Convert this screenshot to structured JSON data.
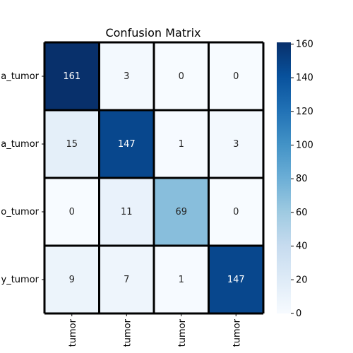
{
  "chart_data": {
    "type": "heatmap",
    "title": "Confusion Matrix",
    "row_labels": [
      "a_tumor",
      "a_tumor",
      "o_tumor",
      "y_tumor"
    ],
    "col_labels": [
      "tumor",
      "tumor",
      "tumor",
      "tumor"
    ],
    "values": [
      [
        161,
        3,
        0,
        0
      ],
      [
        15,
        147,
        1,
        3
      ],
      [
        0,
        11,
        69,
        0
      ],
      [
        9,
        7,
        1,
        147
      ]
    ],
    "colormap": "Blues",
    "vmin": 0,
    "vmax": 161,
    "colorbar_ticks": [
      0,
      20,
      40,
      60,
      80,
      100,
      120,
      140,
      160
    ],
    "colorbar_tick_labels": [
      "0",
      "20",
      "40",
      "60",
      "80",
      "100",
      "120",
      "140",
      "160"
    ]
  }
}
